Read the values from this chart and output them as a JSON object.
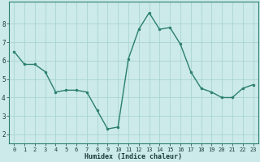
{
  "x": [
    0,
    1,
    2,
    3,
    4,
    5,
    6,
    7,
    8,
    9,
    10,
    11,
    12,
    13,
    14,
    15,
    16,
    17,
    18,
    19,
    20,
    21,
    22,
    23
  ],
  "y": [
    6.5,
    5.8,
    5.8,
    5.4,
    4.3,
    4.4,
    4.4,
    4.3,
    3.3,
    2.3,
    2.4,
    6.1,
    7.7,
    8.6,
    7.7,
    7.8,
    6.9,
    5.4,
    4.5,
    4.3,
    4.0,
    4.0,
    4.5,
    4.7
  ],
  "xlabel": "Humidex (Indice chaleur)",
  "line_color": "#2a7f6f",
  "bg_color": "#cceaea",
  "grid_color": "#aad4d4",
  "ylim": [
    1.5,
    9.2
  ],
  "xlim": [
    -0.5,
    23.5
  ],
  "yticks": [
    2,
    3,
    4,
    5,
    6,
    7,
    8
  ],
  "xticks": [
    0,
    1,
    2,
    3,
    4,
    5,
    6,
    7,
    8,
    9,
    10,
    11,
    12,
    13,
    14,
    15,
    16,
    17,
    18,
    19,
    20,
    21,
    22,
    23
  ],
  "tick_fontsize": 5.0,
  "xlabel_fontsize": 6.0,
  "marker_size": 2.0,
  "line_width": 1.0
}
